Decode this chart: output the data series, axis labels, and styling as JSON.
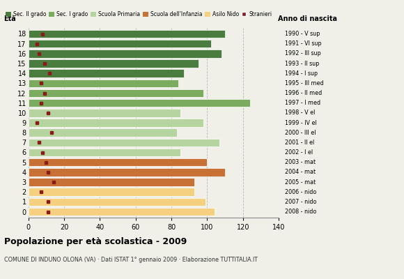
{
  "ages": [
    18,
    17,
    16,
    15,
    14,
    13,
    12,
    11,
    10,
    9,
    8,
    7,
    6,
    5,
    4,
    3,
    2,
    1,
    0
  ],
  "bar_values": [
    110,
    102,
    108,
    95,
    87,
    84,
    98,
    124,
    85,
    98,
    83,
    107,
    85,
    100,
    110,
    93,
    93,
    99,
    104
  ],
  "stranieri": [
    8,
    5,
    6,
    9,
    12,
    7,
    9,
    7,
    11,
    5,
    13,
    6,
    8,
    10,
    11,
    14,
    7,
    11,
    11
  ],
  "anno_nascita": [
    "1990 - V sup",
    "1991 - VI sup",
    "1992 - III sup",
    "1993 - II sup",
    "1994 - I sup",
    "1995 - III med",
    "1996 - II med",
    "1997 - I med",
    "1998 - V el",
    "1999 - IV el",
    "2000 - III el",
    "2001 - II el",
    "2002 - I el",
    "2003 - mat",
    "2004 - mat",
    "2005 - mat",
    "2006 - nido",
    "2007 - nido",
    "2008 - nido"
  ],
  "categories": {
    "sec2": [
      14,
      15,
      16,
      17,
      18
    ],
    "sec1": [
      11,
      12,
      13
    ],
    "primaria": [
      6,
      7,
      8,
      9,
      10
    ],
    "infanzia": [
      3,
      4,
      5
    ],
    "nido": [
      0,
      1,
      2
    ]
  },
  "colors": {
    "sec2": "#4a7c3f",
    "sec1": "#7aab5e",
    "primaria": "#b5d4a0",
    "infanzia": "#c87137",
    "nido": "#f5d080"
  },
  "stranieri_color": "#8b1a1a",
  "legend_labels": [
    "Sec. II grado",
    "Sec. I grado",
    "Scuola Primaria",
    "Scuola dell'Infanzia",
    "Asilo Nido",
    "Stranieri"
  ],
  "title": "Popolazione per età scolastica - 2009",
  "subtitle": "COMUNE DI INDUNO OLONA (VA) · Dati ISTAT 1° gennaio 2009 · Elaborazione TUTTITALIA.IT",
  "xlim": [
    0,
    140
  ],
  "xticks": [
    0,
    20,
    40,
    60,
    80,
    100,
    120,
    140
  ],
  "background_color": "#f0f0e8",
  "bar_height": 0.82,
  "grid_color": "#aaaaaa"
}
